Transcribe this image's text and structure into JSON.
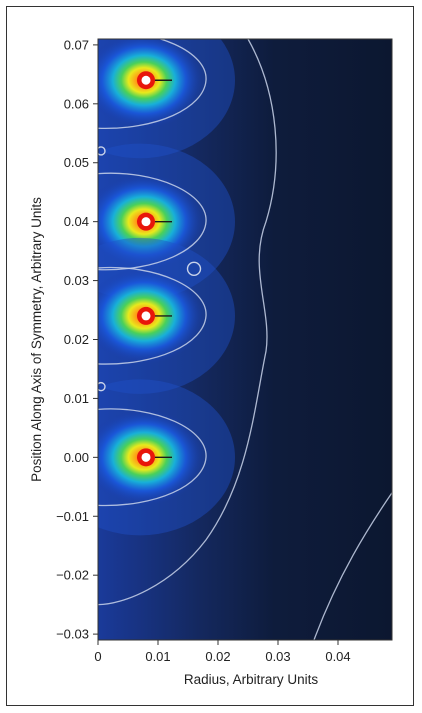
{
  "chart_data": {
    "type": "heatmap",
    "title": "",
    "xlabel": "Radius, Arbitrary Units",
    "ylabel": "Position Along Axis of Symmetry, Arbitrary Units",
    "xlim": [
      0,
      0.049
    ],
    "ylim": [
      -0.031,
      0.071
    ],
    "x_ticks": [
      "0",
      "0.01",
      "0.02",
      "0.03",
      "0.04"
    ],
    "x_tick_values": [
      0,
      0.01,
      0.02,
      0.03,
      0.04
    ],
    "y_ticks": [
      "0.07",
      "0.06",
      "0.05",
      "0.04",
      "0.03",
      "0.02",
      "0.01",
      "0.00",
      "−0.01",
      "−0.02",
      "−0.03"
    ],
    "y_tick_values": [
      0.07,
      0.06,
      0.05,
      0.04,
      0.03,
      0.02,
      0.01,
      0.0,
      -0.01,
      -0.02,
      -0.03
    ],
    "sources": [
      {
        "x": 0.008,
        "y": 0.064
      },
      {
        "x": 0.008,
        "y": 0.04
      },
      {
        "x": 0.008,
        "y": 0.024
      },
      {
        "x": 0.008,
        "y": 0.0
      }
    ],
    "saddle_points": [
      {
        "x": 0.016,
        "y": 0.032
      },
      {
        "x": 0.0005,
        "y": 0.052
      },
      {
        "x": 0.0005,
        "y": 0.012
      }
    ],
    "grid": false,
    "colormap": "jet on dark navy",
    "colors": {
      "background": "#0d1a33",
      "contour": "#c9d3ea",
      "hot_core": "#ff1a0a",
      "mid": "#d8e81a",
      "cool": "#1a5ae0"
    }
  }
}
